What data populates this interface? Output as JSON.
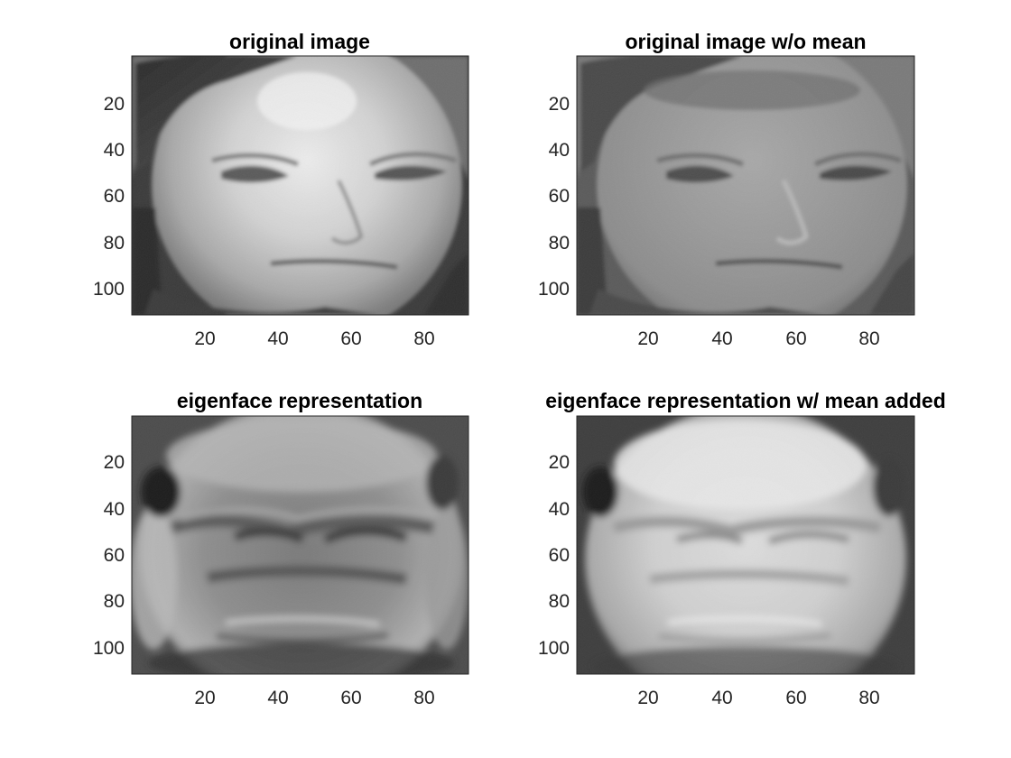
{
  "figure": {
    "panels": [
      {
        "title": "original image",
        "content": "grayscale face photo: young man, short light hair, dark background",
        "xticks": [
          "20",
          "40",
          "60",
          "80"
        ],
        "yticks": [
          "20",
          "40",
          "60",
          "80",
          "100"
        ],
        "xlim": [
          0.5,
          92.5
        ],
        "ylim": [
          0.5,
          112.5
        ]
      },
      {
        "title": "original image w/o mean",
        "content": "same face with the mean face subtracted (lower contrast, flatter tones)",
        "xticks": [
          "20",
          "40",
          "60",
          "80"
        ],
        "yticks": [
          "20",
          "40",
          "60",
          "80",
          "100"
        ],
        "xlim": [
          0.5,
          92.5
        ],
        "ylim": [
          0.5,
          112.5
        ]
      },
      {
        "title": "eigenface representation",
        "content": "blurry ghost-like face reconstruction from eigenfaces, no mean",
        "xticks": [
          "20",
          "40",
          "60",
          "80"
        ],
        "yticks": [
          "20",
          "40",
          "60",
          "80",
          "100"
        ],
        "xlim": [
          0.5,
          92.5
        ],
        "ylim": [
          0.5,
          112.5
        ]
      },
      {
        "title": "eigenface representation w/ mean added",
        "content": "brighter blurry face reconstruction with the mean face added back",
        "xticks": [
          "20",
          "40",
          "60",
          "80"
        ],
        "yticks": [
          "20",
          "40",
          "60",
          "80",
          "100"
        ],
        "xlim": [
          0.5,
          92.5
        ],
        "ylim": [
          0.5,
          112.5
        ]
      }
    ]
  }
}
